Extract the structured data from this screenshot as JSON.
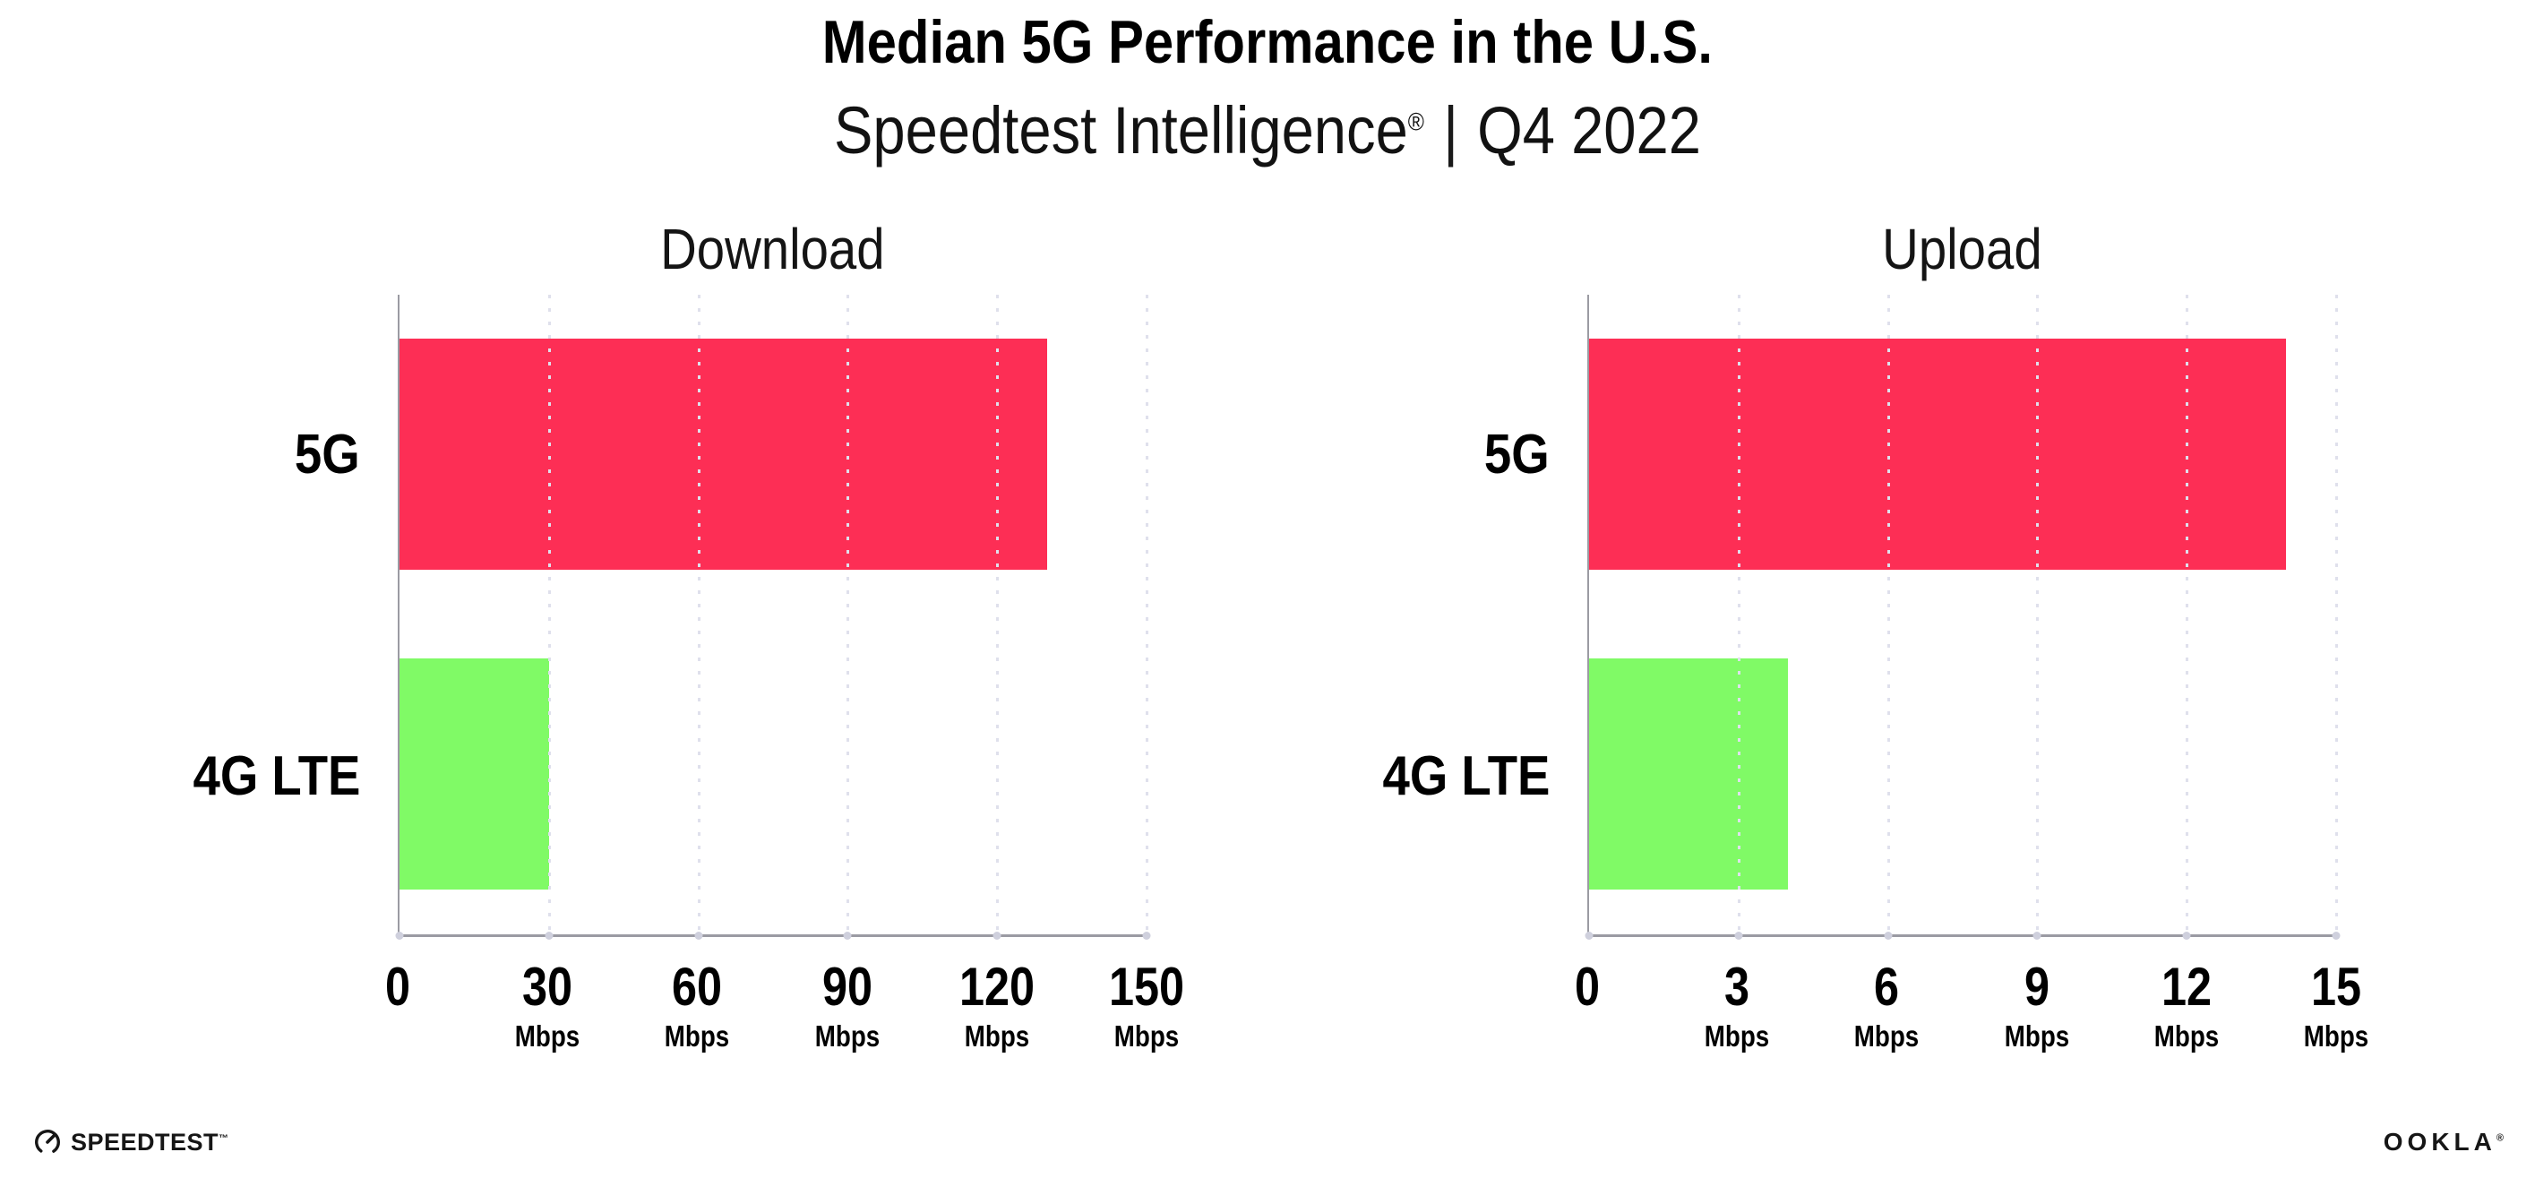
{
  "header": {
    "title": "Median 5G Performance in the U.S.",
    "subtitle_brand": "Speedtest Intelligence",
    "subtitle_registered": "®",
    "subtitle_separator": "|",
    "subtitle_period": "Q4 2022"
  },
  "chart_data": [
    {
      "type": "bar",
      "orientation": "horizontal",
      "title": "Download",
      "categories": [
        "5G",
        "4G LTE"
      ],
      "values": [
        130,
        30
      ],
      "unit": "Mbps",
      "xlim": [
        0,
        150
      ],
      "ticks": [
        0,
        30,
        60,
        90,
        120,
        150
      ],
      "bar_colors": [
        "#FD2E55",
        "#80FA66"
      ],
      "grid": "dotted-vertical",
      "legend": "none"
    },
    {
      "type": "bar",
      "orientation": "horizontal",
      "title": "Upload",
      "categories": [
        "5G",
        "4G LTE"
      ],
      "values": [
        14,
        4
      ],
      "unit": "Mbps",
      "xlim": [
        0,
        15
      ],
      "ticks": [
        0,
        3,
        6,
        9,
        12,
        15
      ],
      "bar_colors": [
        "#FD2E55",
        "#80FA66"
      ],
      "grid": "dotted-vertical",
      "legend": "none"
    }
  ],
  "footer": {
    "speedtest_logo_text": "SPEEDTEST",
    "speedtest_trademark": "™",
    "ookla_logo_text": "OOKLA",
    "ookla_registered": "®"
  },
  "colors": {
    "bar_5g": "#FD2E55",
    "bar_4g_lte": "#80FA66",
    "gridline": "#DFE0EC",
    "axis": "#9B9BA3",
    "text": "#000000"
  }
}
